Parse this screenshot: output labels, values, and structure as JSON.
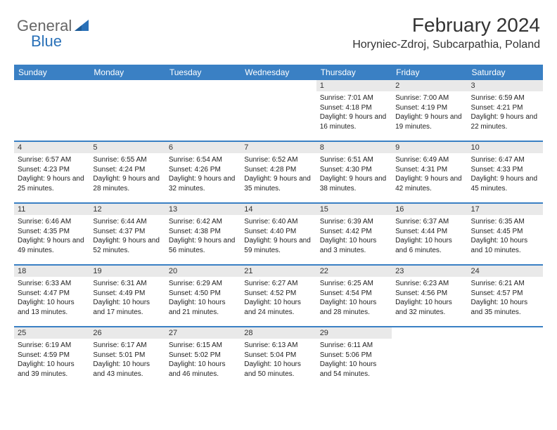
{
  "logo": {
    "text1": "General",
    "text2": "Blue"
  },
  "header": {
    "month_title": "February 2024",
    "location": "Horyniec-Zdroj, Subcarpathia, Poland"
  },
  "colors": {
    "header_bg": "#3a80c4",
    "header_text": "#ffffff",
    "daynum_bg": "#e9e9e9",
    "week_border": "#3a80c4",
    "logo_blue": "#2a71b8"
  },
  "day_names": [
    "Sunday",
    "Monday",
    "Tuesday",
    "Wednesday",
    "Thursday",
    "Friday",
    "Saturday"
  ],
  "weeks": [
    [
      {
        "empty": true
      },
      {
        "empty": true
      },
      {
        "empty": true
      },
      {
        "empty": true
      },
      {
        "day": "1",
        "sunrise": "Sunrise: 7:01 AM",
        "sunset": "Sunset: 4:18 PM",
        "daylight": "Daylight: 9 hours and 16 minutes."
      },
      {
        "day": "2",
        "sunrise": "Sunrise: 7:00 AM",
        "sunset": "Sunset: 4:19 PM",
        "daylight": "Daylight: 9 hours and 19 minutes."
      },
      {
        "day": "3",
        "sunrise": "Sunrise: 6:59 AM",
        "sunset": "Sunset: 4:21 PM",
        "daylight": "Daylight: 9 hours and 22 minutes."
      }
    ],
    [
      {
        "day": "4",
        "sunrise": "Sunrise: 6:57 AM",
        "sunset": "Sunset: 4:23 PM",
        "daylight": "Daylight: 9 hours and 25 minutes."
      },
      {
        "day": "5",
        "sunrise": "Sunrise: 6:55 AM",
        "sunset": "Sunset: 4:24 PM",
        "daylight": "Daylight: 9 hours and 28 minutes."
      },
      {
        "day": "6",
        "sunrise": "Sunrise: 6:54 AM",
        "sunset": "Sunset: 4:26 PM",
        "daylight": "Daylight: 9 hours and 32 minutes."
      },
      {
        "day": "7",
        "sunrise": "Sunrise: 6:52 AM",
        "sunset": "Sunset: 4:28 PM",
        "daylight": "Daylight: 9 hours and 35 minutes."
      },
      {
        "day": "8",
        "sunrise": "Sunrise: 6:51 AM",
        "sunset": "Sunset: 4:30 PM",
        "daylight": "Daylight: 9 hours and 38 minutes."
      },
      {
        "day": "9",
        "sunrise": "Sunrise: 6:49 AM",
        "sunset": "Sunset: 4:31 PM",
        "daylight": "Daylight: 9 hours and 42 minutes."
      },
      {
        "day": "10",
        "sunrise": "Sunrise: 6:47 AM",
        "sunset": "Sunset: 4:33 PM",
        "daylight": "Daylight: 9 hours and 45 minutes."
      }
    ],
    [
      {
        "day": "11",
        "sunrise": "Sunrise: 6:46 AM",
        "sunset": "Sunset: 4:35 PM",
        "daylight": "Daylight: 9 hours and 49 minutes."
      },
      {
        "day": "12",
        "sunrise": "Sunrise: 6:44 AM",
        "sunset": "Sunset: 4:37 PM",
        "daylight": "Daylight: 9 hours and 52 minutes."
      },
      {
        "day": "13",
        "sunrise": "Sunrise: 6:42 AM",
        "sunset": "Sunset: 4:38 PM",
        "daylight": "Daylight: 9 hours and 56 minutes."
      },
      {
        "day": "14",
        "sunrise": "Sunrise: 6:40 AM",
        "sunset": "Sunset: 4:40 PM",
        "daylight": "Daylight: 9 hours and 59 minutes."
      },
      {
        "day": "15",
        "sunrise": "Sunrise: 6:39 AM",
        "sunset": "Sunset: 4:42 PM",
        "daylight": "Daylight: 10 hours and 3 minutes."
      },
      {
        "day": "16",
        "sunrise": "Sunrise: 6:37 AM",
        "sunset": "Sunset: 4:44 PM",
        "daylight": "Daylight: 10 hours and 6 minutes."
      },
      {
        "day": "17",
        "sunrise": "Sunrise: 6:35 AM",
        "sunset": "Sunset: 4:45 PM",
        "daylight": "Daylight: 10 hours and 10 minutes."
      }
    ],
    [
      {
        "day": "18",
        "sunrise": "Sunrise: 6:33 AM",
        "sunset": "Sunset: 4:47 PM",
        "daylight": "Daylight: 10 hours and 13 minutes."
      },
      {
        "day": "19",
        "sunrise": "Sunrise: 6:31 AM",
        "sunset": "Sunset: 4:49 PM",
        "daylight": "Daylight: 10 hours and 17 minutes."
      },
      {
        "day": "20",
        "sunrise": "Sunrise: 6:29 AM",
        "sunset": "Sunset: 4:50 PM",
        "daylight": "Daylight: 10 hours and 21 minutes."
      },
      {
        "day": "21",
        "sunrise": "Sunrise: 6:27 AM",
        "sunset": "Sunset: 4:52 PM",
        "daylight": "Daylight: 10 hours and 24 minutes."
      },
      {
        "day": "22",
        "sunrise": "Sunrise: 6:25 AM",
        "sunset": "Sunset: 4:54 PM",
        "daylight": "Daylight: 10 hours and 28 minutes."
      },
      {
        "day": "23",
        "sunrise": "Sunrise: 6:23 AM",
        "sunset": "Sunset: 4:56 PM",
        "daylight": "Daylight: 10 hours and 32 minutes."
      },
      {
        "day": "24",
        "sunrise": "Sunrise: 6:21 AM",
        "sunset": "Sunset: 4:57 PM",
        "daylight": "Daylight: 10 hours and 35 minutes."
      }
    ],
    [
      {
        "day": "25",
        "sunrise": "Sunrise: 6:19 AM",
        "sunset": "Sunset: 4:59 PM",
        "daylight": "Daylight: 10 hours and 39 minutes."
      },
      {
        "day": "26",
        "sunrise": "Sunrise: 6:17 AM",
        "sunset": "Sunset: 5:01 PM",
        "daylight": "Daylight: 10 hours and 43 minutes."
      },
      {
        "day": "27",
        "sunrise": "Sunrise: 6:15 AM",
        "sunset": "Sunset: 5:02 PM",
        "daylight": "Daylight: 10 hours and 46 minutes."
      },
      {
        "day": "28",
        "sunrise": "Sunrise: 6:13 AM",
        "sunset": "Sunset: 5:04 PM",
        "daylight": "Daylight: 10 hours and 50 minutes."
      },
      {
        "day": "29",
        "sunrise": "Sunrise: 6:11 AM",
        "sunset": "Sunset: 5:06 PM",
        "daylight": "Daylight: 10 hours and 54 minutes."
      },
      {
        "empty": true
      },
      {
        "empty": true
      }
    ]
  ]
}
